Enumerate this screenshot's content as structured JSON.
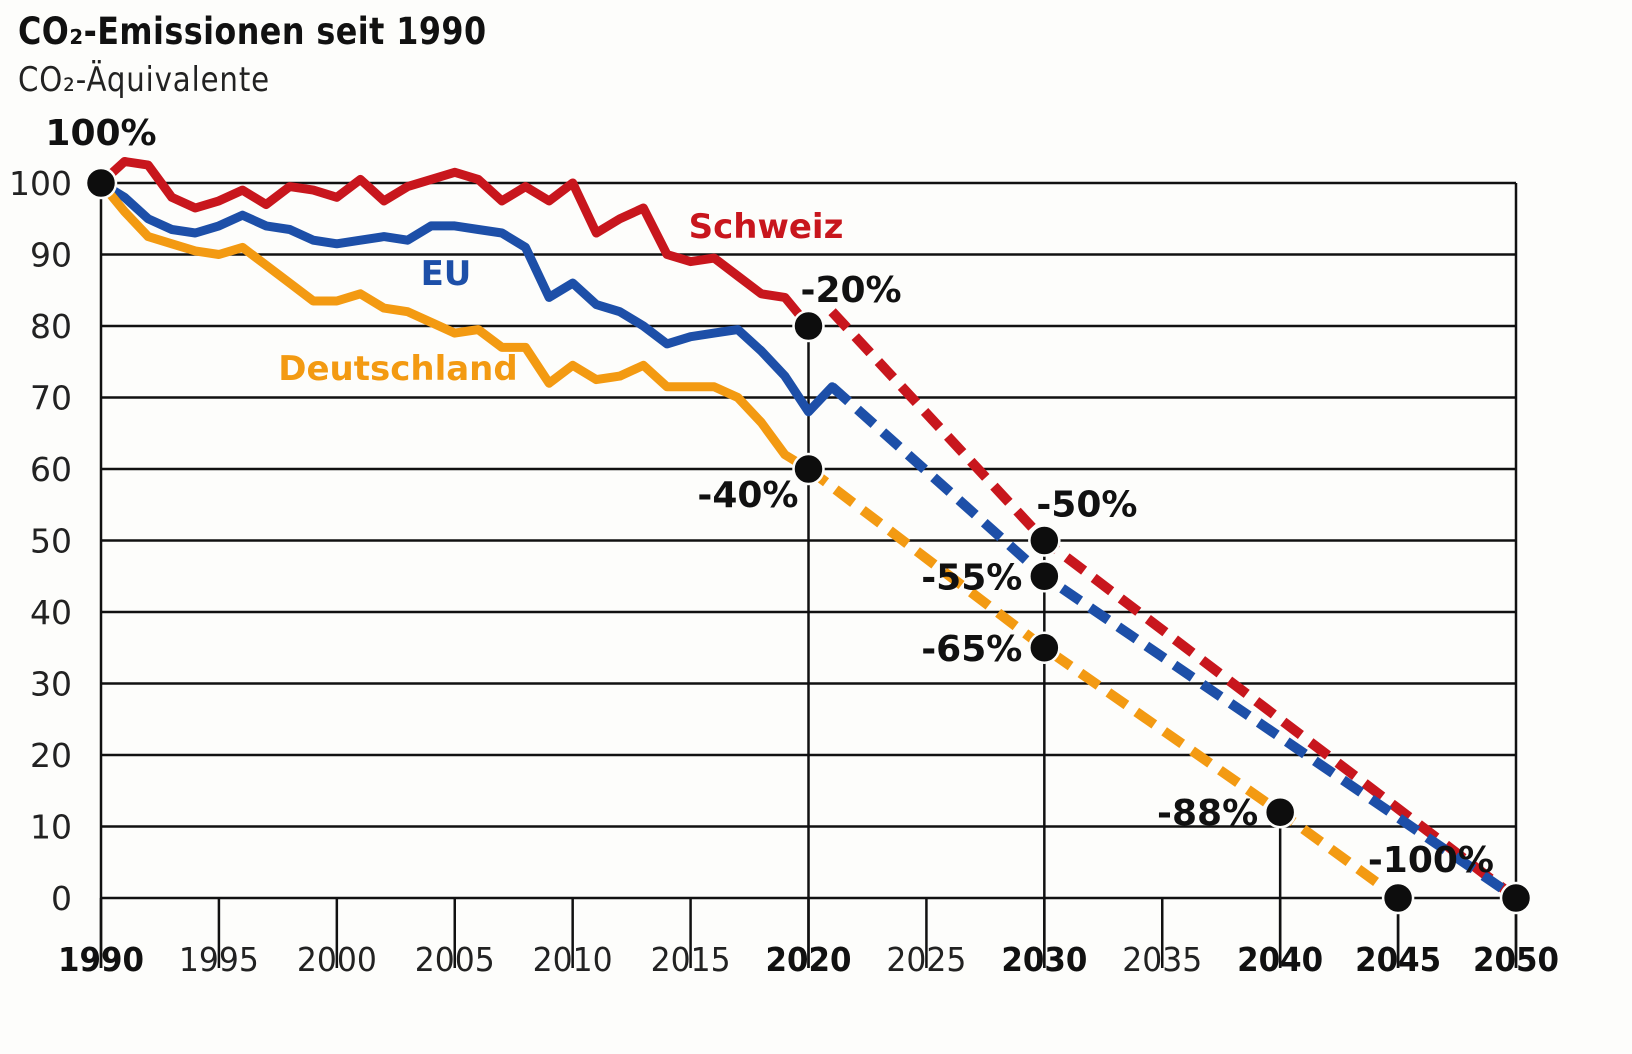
{
  "chart_data": {
    "type": "line",
    "title": "CO₂-Emissionen seit 1990",
    "subtitle": "CO₂-Äquivalente",
    "xlabel": "",
    "ylabel": "",
    "xlim": [
      1990,
      2050
    ],
    "ylim": [
      0,
      100
    ],
    "grid": true,
    "y_ticks": [
      "0",
      "10",
      "20",
      "30",
      "40",
      "50",
      "60",
      "70",
      "80",
      "90",
      "100"
    ],
    "x_ticks": [
      {
        "label": "1990",
        "value": 1990,
        "bold": true
      },
      {
        "label": "1995",
        "value": 1995,
        "bold": false
      },
      {
        "label": "2000",
        "value": 2000,
        "bold": false
      },
      {
        "label": "2005",
        "value": 2005,
        "bold": false
      },
      {
        "label": "2010",
        "value": 2010,
        "bold": false
      },
      {
        "label": "2015",
        "value": 2015,
        "bold": false
      },
      {
        "label": "2020",
        "value": 2020,
        "bold": true
      },
      {
        "label": "2025",
        "value": 2025,
        "bold": false
      },
      {
        "label": "2030",
        "value": 2030,
        "bold": true
      },
      {
        "label": "2035",
        "value": 2035,
        "bold": false
      },
      {
        "label": "2040",
        "value": 2040,
        "bold": true
      },
      {
        "label": "2045",
        "value": 2045,
        "bold": true
      },
      {
        "label": "2050",
        "value": 2050,
        "bold": true
      }
    ],
    "series": [
      {
        "name": "Schweiz",
        "color": "#c8161d",
        "x": [
          1990,
          1991,
          1992,
          1993,
          1994,
          1995,
          1996,
          1997,
          1998,
          1999,
          2000,
          2001,
          2002,
          2003,
          2004,
          2005,
          2006,
          2007,
          2008,
          2009,
          2010,
          2011,
          2012,
          2013,
          2014,
          2015,
          2016,
          2017,
          2018,
          2019,
          2020
        ],
        "values": [
          100,
          103,
          102.5,
          98,
          96.5,
          97.5,
          99,
          97,
          99.5,
          99,
          98,
          100.5,
          97.5,
          99.5,
          100.5,
          101.5,
          100.5,
          97.5,
          99.5,
          97.5,
          100,
          93,
          95,
          96.5,
          90,
          89,
          89.5,
          87,
          84.5,
          84,
          80
        ],
        "target_x": [
          2021,
          2030,
          2050
        ],
        "target_values": [
          82,
          50,
          0
        ]
      },
      {
        "name": "EU",
        "color": "#1d4fa8",
        "x": [
          1990,
          1991,
          1992,
          1993,
          1994,
          1995,
          1996,
          1997,
          1998,
          1999,
          2000,
          2001,
          2002,
          2003,
          2004,
          2005,
          2006,
          2007,
          2008,
          2009,
          2010,
          2011,
          2012,
          2013,
          2014,
          2015,
          2016,
          2017,
          2018,
          2019,
          2020,
          2021
        ],
        "values": [
          100,
          98,
          95,
          93.5,
          93,
          94,
          95.5,
          94,
          93.5,
          92,
          91.5,
          92,
          92.5,
          92,
          94,
          94,
          93.5,
          93,
          91,
          84,
          86,
          83,
          82,
          80,
          77.5,
          78.5,
          79,
          79.5,
          76.5,
          73,
          68,
          71.5
        ],
        "target_x": [
          2021,
          2030,
          2050
        ],
        "target_values": [
          71.5,
          45,
          0
        ]
      },
      {
        "name": "Deutschland",
        "color": "#f39a12",
        "x": [
          1990,
          1991,
          1992,
          1993,
          1994,
          1995,
          1996,
          1997,
          1998,
          1999,
          2000,
          2001,
          2002,
          2003,
          2004,
          2005,
          2006,
          2007,
          2008,
          2009,
          2010,
          2011,
          2012,
          2013,
          2014,
          2015,
          2016,
          2017,
          2018,
          2019,
          2020
        ],
        "values": [
          100,
          96,
          92.5,
          91.5,
          90.5,
          90,
          91,
          88.5,
          86,
          83.5,
          83.5,
          84.5,
          82.5,
          82,
          80.5,
          79,
          79.5,
          77,
          77,
          72,
          74.5,
          72.5,
          73,
          74.5,
          71.5,
          71.5,
          71.5,
          70,
          66.5,
          62,
          60
        ],
        "target_x": [
          2020,
          2030,
          2040,
          2045
        ],
        "target_values": [
          60,
          35,
          12,
          0
        ]
      }
    ],
    "annotations": [
      {
        "text": "100%",
        "x": 1990,
        "y": 100,
        "anchor": "above"
      },
      {
        "text": "-20%",
        "x": 2020,
        "y": 80,
        "anchor": "upper-right"
      },
      {
        "text": "-40%",
        "x": 2020,
        "y": 60,
        "anchor": "lower-left"
      },
      {
        "text": "-50%",
        "x": 2030,
        "y": 50,
        "anchor": "upper-right"
      },
      {
        "text": "-55%",
        "x": 2030,
        "y": 45,
        "anchor": "left"
      },
      {
        "text": "-65%",
        "x": 2030,
        "y": 35,
        "anchor": "left"
      },
      {
        "text": "-88%",
        "x": 2040,
        "y": 12,
        "anchor": "left"
      },
      {
        "text": "-100%",
        "x": 2050,
        "y": 0,
        "anchor": "upper-left"
      }
    ],
    "markers": [
      {
        "x": 1990,
        "y": 100
      },
      {
        "x": 2020,
        "y": 80
      },
      {
        "x": 2020,
        "y": 60
      },
      {
        "x": 2030,
        "y": 50
      },
      {
        "x": 2030,
        "y": 45
      },
      {
        "x": 2030,
        "y": 35
      },
      {
        "x": 2040,
        "y": 12
      },
      {
        "x": 2045,
        "y": 0
      },
      {
        "x": 2050,
        "y": 0
      }
    ],
    "legend": "inline"
  }
}
